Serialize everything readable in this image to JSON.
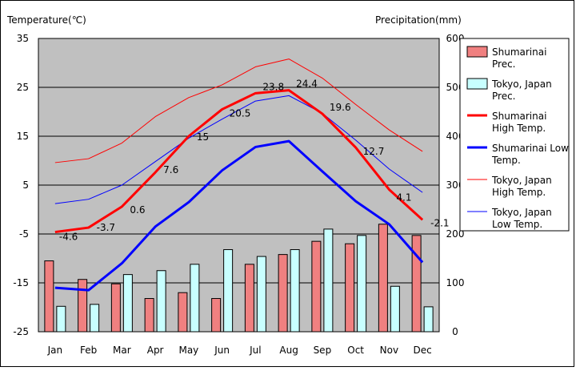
{
  "chart_data": {
    "type": "bar+line",
    "categories": [
      "Jan",
      "Feb",
      "Mar",
      "Apr",
      "May",
      "Jun",
      "Jul",
      "Aug",
      "Sep",
      "Oct",
      "Nov",
      "Dec"
    ],
    "left_axis": {
      "label": "Temperature(℃)",
      "min": -25,
      "max": 35,
      "ticks": [
        35,
        25,
        15,
        5,
        -5,
        -15,
        -25
      ],
      "tick_labels": [
        "35",
        "25",
        "15",
        "5",
        "-5",
        "-15",
        "-25"
      ]
    },
    "right_axis": {
      "label": "Precipitation(mm)",
      "min": 0,
      "max": 600,
      "ticks": [
        600,
        500,
        400,
        300,
        200,
        100,
        0
      ],
      "tick_labels": [
        "600",
        "500",
        "400",
        "300",
        "200",
        "100",
        "0"
      ]
    },
    "grid": true,
    "legend_position": "right",
    "series": [
      {
        "name": "Shumarinai Prec.",
        "kind": "bar",
        "axis": "right",
        "color": "#f08080",
        "values": [
          145,
          107,
          98,
          68,
          80,
          68,
          138,
          158,
          185,
          180,
          220,
          197
        ]
      },
      {
        "name": "Tokyo, Japan Prec.",
        "kind": "bar",
        "axis": "right",
        "color": "#c8ffff",
        "values": [
          52,
          56,
          117,
          125,
          138,
          168,
          154,
          168,
          210,
          197,
          93,
          51
        ]
      },
      {
        "name": "Shumarinai High Temp.",
        "kind": "line",
        "axis": "left",
        "color": "#ff0000",
        "width": 3,
        "values": [
          -4.6,
          -3.7,
          0.6,
          7.6,
          15,
          20.5,
          23.8,
          24.4,
          19.6,
          12.7,
          4.1,
          -2.1
        ],
        "labels": [
          "-4.6",
          "-3.7",
          "0.6",
          "7.6",
          "15",
          "20.5",
          "23.8",
          "24.4",
          "19.6",
          "12.7",
          "4.1",
          "-2.1"
        ]
      },
      {
        "name": "Shumarinai Low Temp.",
        "kind": "line",
        "axis": "left",
        "color": "#0000ff",
        "width": 3,
        "values": [
          -16,
          -16.5,
          -11,
          -3.5,
          1.5,
          8,
          12.8,
          14,
          7.8,
          1.7,
          -3,
          -10.8
        ]
      },
      {
        "name": "Tokyo, Japan High Temp.",
        "kind": "line",
        "axis": "left",
        "color": "#ff0000",
        "width": 1,
        "values": [
          9.6,
          10.4,
          13.6,
          19,
          22.9,
          25.5,
          29.2,
          30.8,
          26.9,
          21.5,
          16.3,
          11.9
        ]
      },
      {
        "name": "Tokyo, Japan Low Temp.",
        "kind": "line",
        "axis": "left",
        "color": "#0000ff",
        "width": 1,
        "values": [
          1.2,
          2.1,
          5,
          9.8,
          14.6,
          18.5,
          22.2,
          23.3,
          19.7,
          14.2,
          8.3,
          3.5
        ]
      }
    ],
    "legend": [
      {
        "name": "Shumarinai Prec.",
        "lines": [
          "Shumarinai",
          "Prec."
        ],
        "kind": "bar",
        "color": "#f08080"
      },
      {
        "name": "Tokyo, Japan Prec.",
        "lines": [
          "Tokyo, Japan",
          "Prec."
        ],
        "kind": "bar",
        "color": "#c8ffff"
      },
      {
        "name": "Shumarinai High Temp.",
        "lines": [
          "Shumarinai",
          "High Temp."
        ],
        "kind": "line",
        "color": "#ff0000",
        "width": 3
      },
      {
        "name": "Shumarinai Low Temp.",
        "lines": [
          "Shumarinai Low",
          "Temp."
        ],
        "kind": "line",
        "color": "#0000ff",
        "width": 3
      },
      {
        "name": "Tokyo, Japan High Temp.",
        "lines": [
          "Tokyo, Japan",
          "High Temp."
        ],
        "kind": "line",
        "color": "#ff0000",
        "width": 1
      },
      {
        "name": "Tokyo, Japan Low Temp.",
        "lines": [
          "Tokyo, Japan",
          "Low Temp."
        ],
        "kind": "line",
        "color": "#0000ff",
        "width": 1
      }
    ],
    "colors": {
      "plot_bg": "#c0c0c0",
      "bar_outline": "#000000"
    }
  }
}
